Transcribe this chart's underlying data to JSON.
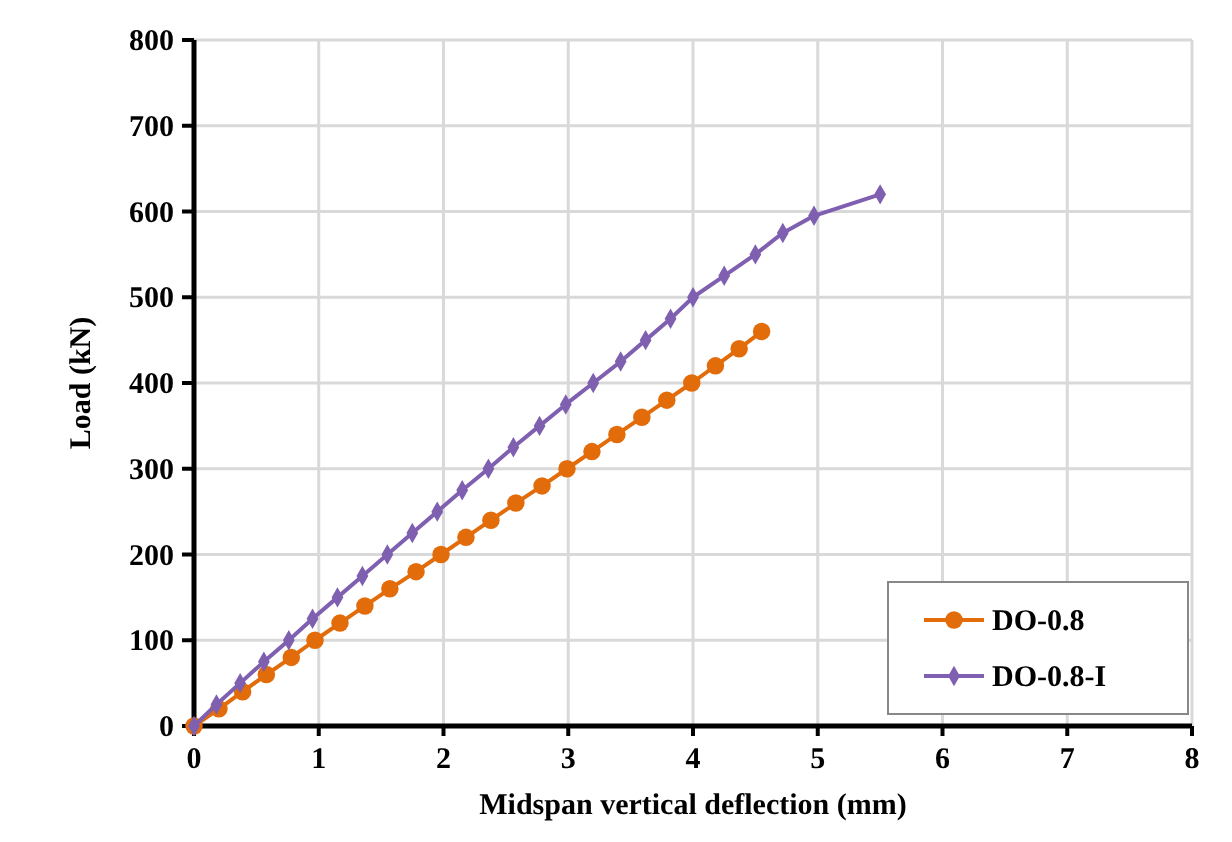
{
  "chart_data": {
    "type": "line",
    "xlabel": "Midspan vertical deflection (mm)",
    "ylabel": "Load (kN)",
    "xlim": [
      0,
      8
    ],
    "xticks": [
      0,
      1,
      2,
      3,
      4,
      5,
      6,
      7,
      8
    ],
    "ylim": [
      0,
      800
    ],
    "yticks": [
      0,
      100,
      200,
      300,
      400,
      500,
      600,
      700,
      800
    ],
    "grid": true,
    "legend": "bottom right",
    "series": [
      {
        "name": "DO-0.8",
        "color": "#e36c0a",
        "marker": "circle",
        "x": [
          0,
          0.2,
          0.39,
          0.58,
          0.78,
          0.97,
          1.17,
          1.37,
          1.57,
          1.78,
          1.98,
          2.18,
          2.38,
          2.58,
          2.79,
          2.99,
          3.19,
          3.39,
          3.59,
          3.79,
          3.99,
          4.18,
          4.37,
          4.55
        ],
        "values": [
          0,
          20,
          40,
          60,
          80,
          100,
          120,
          140,
          160,
          180,
          200,
          220,
          240,
          260,
          280,
          300,
          320,
          340,
          360,
          380,
          400,
          420,
          440,
          460
        ]
      },
      {
        "name": "DO-0.8-I",
        "color": "#7f5fb0",
        "marker": "diamond",
        "x": [
          0,
          0.18,
          0.37,
          0.56,
          0.76,
          0.95,
          1.15,
          1.35,
          1.55,
          1.75,
          1.95,
          2.15,
          2.36,
          2.56,
          2.77,
          2.98,
          3.2,
          3.42,
          3.62,
          3.82,
          4.0,
          4.25,
          4.5,
          4.72,
          4.97,
          5.5
        ],
        "values": [
          0,
          25,
          50,
          75,
          100,
          125,
          150,
          175,
          200,
          225,
          250,
          275,
          300,
          325,
          350,
          375,
          400,
          425,
          450,
          475,
          500,
          525,
          550,
          575,
          595,
          620
        ]
      }
    ]
  }
}
